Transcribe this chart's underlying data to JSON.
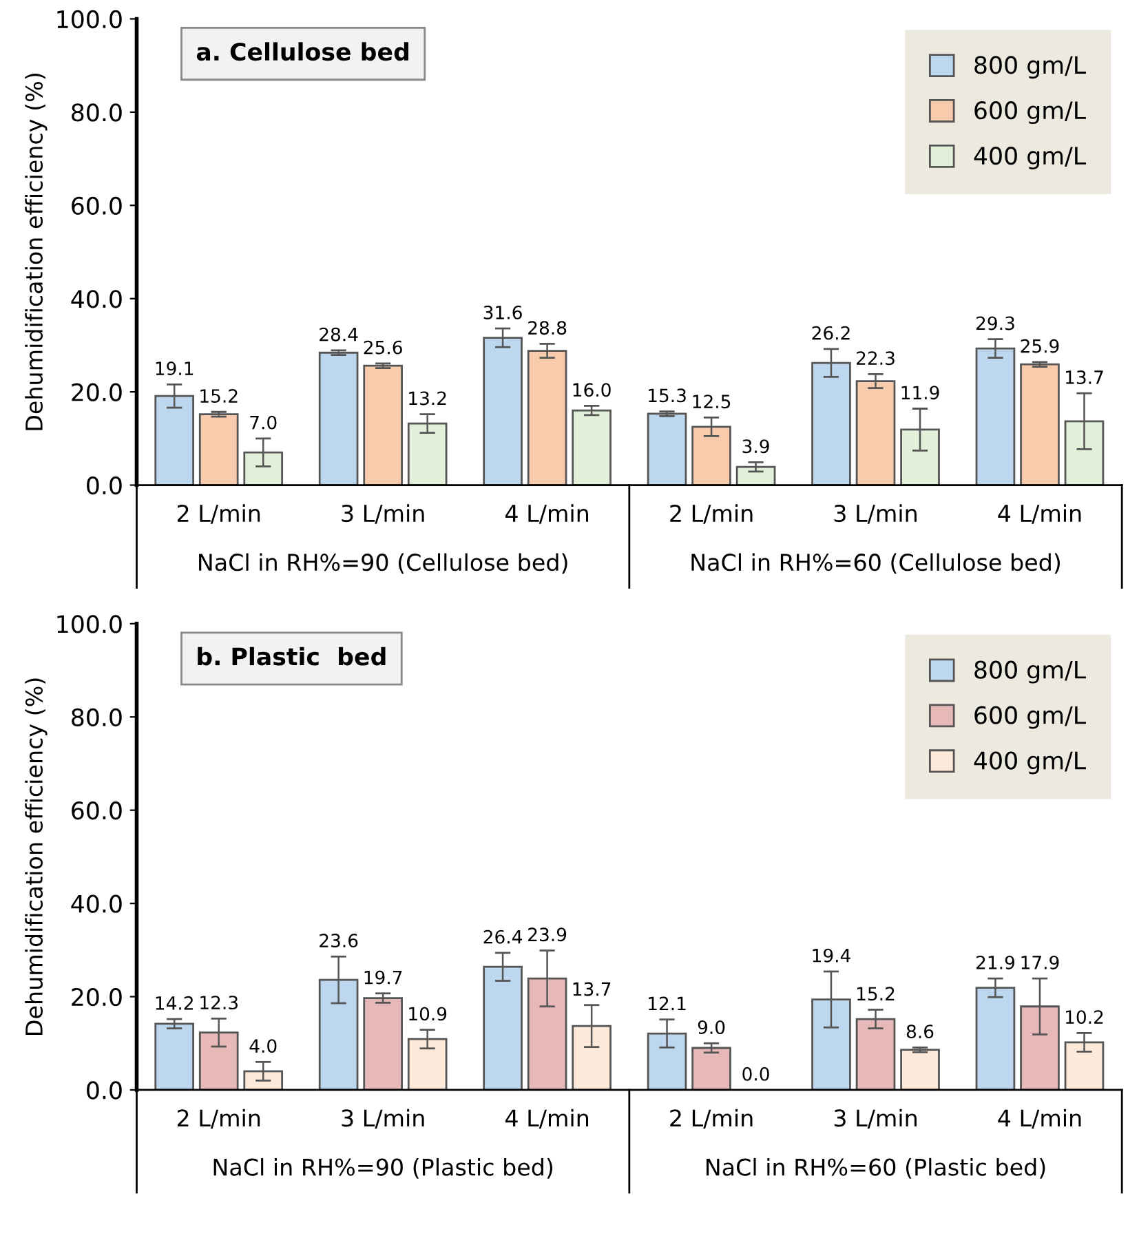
{
  "chart_data": [
    {
      "type": "bar",
      "title": "a. Cellulose bed",
      "ylabel": "Dehumidification efficiency (%)",
      "categories": [
        "2 L/min",
        "3 L/min",
        "4 L/min",
        "2 L/min",
        "3 L/min",
        "4 L/min"
      ],
      "annotations": [
        "NaCl in RH%=90 (Cellulose bed)",
        "NaCl in RH%=60 (Cellulose bed)"
      ],
      "series": [
        {
          "name": "800 gm/L",
          "color": "#bdd7ee",
          "values": [
            19.1,
            28.4,
            31.6,
            15.3,
            26.2,
            29.3
          ],
          "errors": [
            2.5,
            0.5,
            2,
            0.5,
            3,
            2
          ],
          "value_labels": [
            "19.1",
            "28.4",
            "31.6",
            "15.3",
            "26.2",
            "29.3"
          ]
        },
        {
          "name": "600 gm/L",
          "color": "#f8cbad",
          "values": [
            15.2,
            25.6,
            28.8,
            12.5,
            22.3,
            25.9
          ],
          "errors": [
            0.5,
            0.5,
            1.5,
            2,
            1.5,
            0.5
          ],
          "value_labels": [
            "15.2",
            "25.6",
            "28.8",
            "12.5",
            "22.3",
            "25.9"
          ]
        },
        {
          "name": "400 gm/L",
          "color": "#e2f0d9",
          "values": [
            7.0,
            13.2,
            16.0,
            3.9,
            11.9,
            13.7
          ],
          "errors": [
            3,
            2,
            1,
            1,
            4.5,
            6
          ],
          "value_labels": [
            "7.0",
            "13.2",
            "16.0",
            "3.9",
            "11.9",
            "13.7"
          ]
        }
      ],
      "ylim": [
        0,
        100
      ],
      "yticks": [
        {
          "value": 0,
          "label": "0.0"
        },
        {
          "value": 20,
          "label": "20.0"
        },
        {
          "value": 40,
          "label": "40.0"
        },
        {
          "value": 60,
          "label": "60.0"
        },
        {
          "value": 80,
          "label": "80.0"
        },
        {
          "value": 100,
          "label": "100.0"
        }
      ],
      "legend": "top right",
      "grid": false
    },
    {
      "type": "bar",
      "title": "b. Plastic  bed",
      "ylabel": "Dehumidification efficiency (%)",
      "categories": [
        "2 L/min",
        "3 L/min",
        "4 L/min",
        "2 L/min",
        "3 L/min",
        "4 L/min"
      ],
      "annotations": [
        "NaCl in RH%=90 (Plastic bed)",
        "NaCl in RH%=60 (Plastic bed)"
      ],
      "series": [
        {
          "name": "800 gm/L",
          "color": "#bdd7ee",
          "values": [
            14.2,
            23.6,
            26.4,
            12.1,
            19.4,
            21.9
          ],
          "errors": [
            1,
            5,
            3,
            3,
            6,
            2
          ],
          "value_labels": [
            "14.2",
            "23.6",
            "26.4",
            "12.1",
            "19.4",
            "21.9"
          ]
        },
        {
          "name": "600 gm/L",
          "color": "#e6b9b8",
          "values": [
            12.3,
            19.7,
            23.9,
            9.0,
            15.2,
            17.9
          ],
          "errors": [
            3,
            1,
            6,
            1,
            2,
            6
          ],
          "value_labels": [
            "12.3",
            "19.7",
            "23.9",
            "9.0",
            "15.2",
            "17.9"
          ]
        },
        {
          "name": "400 gm/L",
          "color": "#fde9d9",
          "values": [
            4.0,
            10.9,
            13.7,
            0.0,
            8.6,
            10.2
          ],
          "errors": [
            2,
            2,
            4.5,
            null,
            0.5,
            2
          ],
          "value_labels": [
            "4.0",
            "10.9",
            "13.7",
            "0.0",
            "8.6",
            "10.2"
          ]
        }
      ],
      "ylim": [
        0,
        100
      ],
      "yticks": [
        {
          "value": 0,
          "label": "0.0"
        },
        {
          "value": 20,
          "label": "20.0"
        },
        {
          "value": 40,
          "label": "40.0"
        },
        {
          "value": 60,
          "label": "60.0"
        },
        {
          "value": 80,
          "label": "80.0"
        },
        {
          "value": 100,
          "label": "100.0"
        }
      ],
      "legend": "top right",
      "grid": false
    }
  ]
}
